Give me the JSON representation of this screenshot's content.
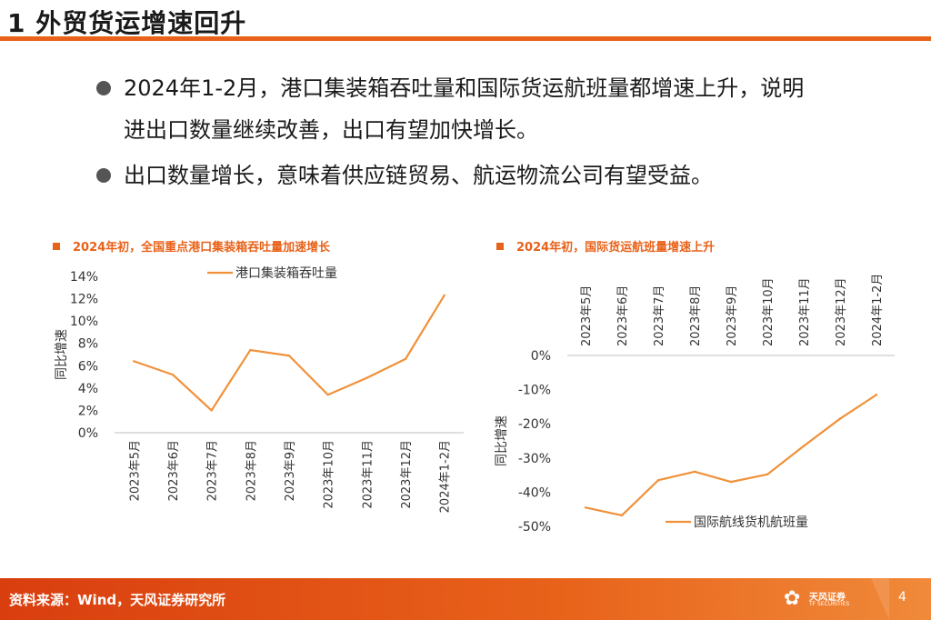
{
  "header": {
    "title": "1 外贸货运增速回升"
  },
  "bullets": [
    {
      "line1": "2024年1-2月，港口集装箱吞吐量和国际货运航班量都增速上升，说明",
      "line2": "进出口数量继续改善，出口有望加快增长。"
    },
    {
      "line1": "出口数量增长，意味着供应链贸易、航运物流公司有望受益。"
    }
  ],
  "footer": {
    "source": "资料来源：Wind，天风证券研究所",
    "page": "4",
    "logo_cn": "天风证券",
    "logo_en": "TF SECURITIES"
  },
  "colors": {
    "accent": "#e8621a",
    "series": "#f0913a",
    "footer_start": "#d93e0f",
    "footer_end": "#f08a3a"
  },
  "chart_data": [
    {
      "type": "line",
      "title": "2024年初，全国重点港口集装箱吞吐量加速增长",
      "categories": [
        "2023年5月",
        "2023年6月",
        "2023年7月",
        "2023年8月",
        "2023年9月",
        "2023年10月",
        "2023年11月",
        "2023年12月",
        "2024年1-2月"
      ],
      "series": [
        {
          "name": "港口集装箱吞吐量",
          "values": [
            6.4,
            5.2,
            2.0,
            7.4,
            6.9,
            3.4,
            4.9,
            6.6,
            12.3
          ]
        }
      ],
      "ylabel": "同比增速",
      "ylim": [
        0,
        14
      ],
      "yticks": [
        0,
        2,
        4,
        6,
        8,
        10,
        12,
        14
      ],
      "ytick_labels": [
        "0%",
        "2%",
        "4%",
        "6%",
        "8%",
        "10%",
        "12%",
        "14%"
      ],
      "legend": "top"
    },
    {
      "type": "line",
      "title": "2024年初，国际货运航班量增速上升",
      "categories": [
        "2023年5月",
        "2023年6月",
        "2023年7月",
        "2023年8月",
        "2023年9月",
        "2023年10月",
        "2023年11月",
        "2023年12月",
        "2024年1-2月"
      ],
      "series": [
        {
          "name": "国际航线货机航班量",
          "values": [
            -44.5,
            -46.8,
            -36.5,
            -34.0,
            -37.0,
            -34.8,
            -26.5,
            -18.5,
            -11.5
          ]
        }
      ],
      "ylabel": "同比增速",
      "ylim": [
        -50,
        0
      ],
      "yticks": [
        0,
        -10,
        -20,
        -30,
        -40,
        -50
      ],
      "ytick_labels": [
        "0%",
        "-10%",
        "-20%",
        "-30%",
        "-40%",
        "-50%"
      ],
      "legend": "bottom",
      "xaxis_position": "top"
    }
  ]
}
